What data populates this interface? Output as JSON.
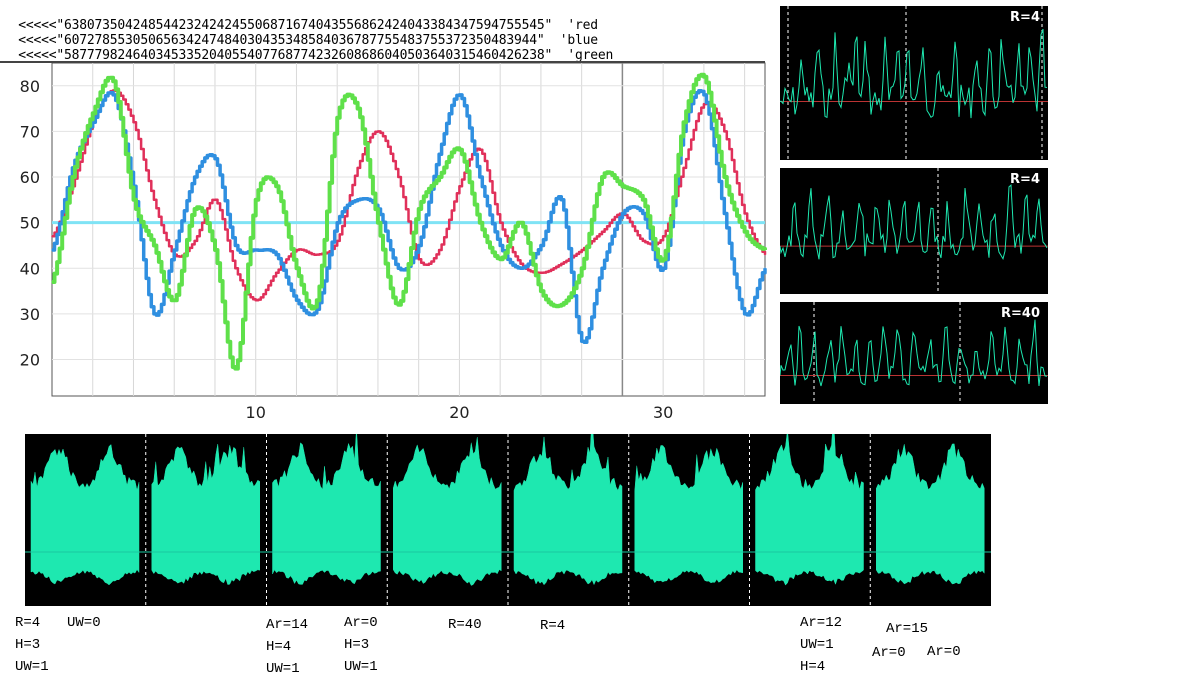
{
  "sequences": [
    {
      "prefix": "<<<<<",
      "digits": "638073504248544232424245506871674043556862424043384347594755545",
      "color_name": "red"
    },
    {
      "prefix": "<<<<<",
      "digits": "607278553050656342474840304353485840367877554837553723504839​44",
      "color_name": "blue"
    },
    {
      "prefix": "<<<<<",
      "digits": "587779824640345335204055407768774232608686040503640315460426238",
      "color_name": "green"
    }
  ],
  "chart_data": {
    "type": "line",
    "title": "",
    "xlabel": "",
    "ylabel": "",
    "xlim": [
      0,
      35
    ],
    "ylim": [
      12,
      85
    ],
    "yticks": [
      20,
      30,
      40,
      50,
      60,
      70,
      80
    ],
    "xticks": [
      10,
      20,
      30
    ],
    "reference_line": {
      "y": 50,
      "color": "#7fe3f5"
    },
    "grid": true,
    "series": [
      {
        "name": "red",
        "color": "#e0305a",
        "x": [
          0,
          1,
          2,
          3,
          4,
          5,
          6,
          7,
          8,
          9,
          10,
          11,
          12,
          13,
          14,
          15,
          16,
          17,
          18,
          19,
          20,
          21,
          22,
          23,
          24,
          25,
          26,
          27,
          28,
          29,
          30,
          31,
          32,
          33,
          34,
          35
        ],
        "y": [
          47,
          58,
          72,
          79,
          72,
          55,
          43,
          46,
          55,
          40,
          33,
          39,
          44,
          43,
          46,
          62,
          70,
          60,
          42,
          44,
          58,
          66,
          50,
          41,
          39,
          41,
          44,
          48,
          52,
          46,
          47,
          62,
          76,
          70,
          52,
          43
        ]
      },
      {
        "name": "blue",
        "color": "#2f8fe0",
        "x": [
          0,
          1,
          2,
          3,
          4,
          5,
          6,
          7,
          8,
          9,
          10,
          11,
          12,
          13,
          14,
          15,
          16,
          17,
          18,
          19,
          20,
          21,
          22,
          23,
          24,
          25,
          26,
          27,
          28,
          29,
          30,
          31,
          32,
          33,
          34,
          35
        ],
        "y": [
          44,
          62,
          72,
          78,
          58,
          30,
          44,
          60,
          64,
          45,
          44,
          43,
          33,
          31,
          50,
          55,
          53,
          40,
          45,
          65,
          78,
          60,
          45,
          40,
          45,
          55,
          24,
          40,
          52,
          52,
          40,
          70,
          78,
          52,
          30,
          40
        ]
      },
      {
        "name": "green",
        "color": "#5fe04a",
        "x": [
          0,
          1,
          2,
          3,
          4,
          5,
          6,
          7,
          8,
          9,
          10,
          11,
          12,
          13,
          14,
          15,
          16,
          17,
          18,
          19,
          20,
          21,
          22,
          23,
          24,
          25,
          26,
          27,
          28,
          29,
          30,
          31,
          32,
          33,
          34,
          35
        ],
        "y": [
          37,
          60,
          74,
          81,
          55,
          45,
          33,
          53,
          44,
          18,
          55,
          58,
          40,
          33,
          73,
          75,
          50,
          32,
          53,
          60,
          66,
          50,
          42,
          50,
          35,
          32,
          40,
          60,
          58,
          55,
          42,
          72,
          82,
          60,
          48,
          44
        ]
      }
    ]
  },
  "waveform_panels": [
    {
      "label": "R=4"
    },
    {
      "label": "R=4"
    },
    {
      "label": "R=40"
    }
  ],
  "wave_color": "#1ee8b0",
  "waveform_segments": 8,
  "annotations": [
    {
      "text": "R=4"
    },
    {
      "text": "UW=0"
    },
    {
      "text": "H=3"
    },
    {
      "text": "UW=1"
    },
    {
      "text": "Ar=14"
    },
    {
      "text": "H=4"
    },
    {
      "text": "UW=1"
    },
    {
      "text": "Ar=0"
    },
    {
      "text": "H=3"
    },
    {
      "text": "UW=1"
    },
    {
      "text": "R=40"
    },
    {
      "text": "R=4"
    },
    {
      "text": "Ar=12"
    },
    {
      "text": "UW=1"
    },
    {
      "text": "H=4"
    },
    {
      "text": "Ar=15"
    },
    {
      "text": "Ar=0"
    },
    {
      "text": "Ar=0"
    }
  ]
}
